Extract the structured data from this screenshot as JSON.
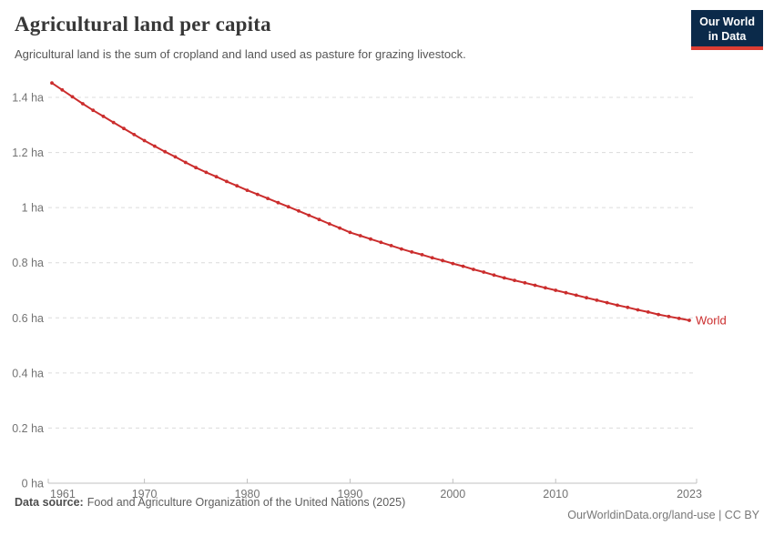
{
  "header": {
    "title": "Agricultural land per capita",
    "subtitle": "Agricultural land is the sum of cropland and land used as pasture for grazing livestock.",
    "logo": {
      "line1": "Our World",
      "line2": "in Data",
      "bg_color": "#0b2a4a",
      "accent_color": "#dc3d33",
      "text_color": "#ffffff"
    }
  },
  "footer": {
    "source_label": "Data source:",
    "source_text": "Food and Agriculture Organization of the United Nations (2025)",
    "citation_link": "OurWorldinData.org/land-use",
    "separator": " | ",
    "license": "CC BY"
  },
  "colors": {
    "line": "#cb2d2d",
    "gridline": "#dcdcdc",
    "axis_line": "#c0c0c0",
    "axis_text": "#737373"
  },
  "chart_data": {
    "type": "line",
    "title": "Agricultural land per capita",
    "unit": "hectares per person",
    "grid": "horizontal-dashed",
    "legend_position": "end-of-line",
    "xlim": [
      1961,
      2023
    ],
    "ylim": [
      0,
      1.45
    ],
    "x_ticks": [
      1961,
      1970,
      1980,
      1990,
      2000,
      2010,
      2023
    ],
    "y_ticks": [
      0,
      0.2,
      0.4,
      0.6,
      0.8,
      1.0,
      1.2,
      1.4
    ],
    "y_tick_labels": [
      "0 ha",
      "0.2 ha",
      "0.4 ha",
      "0.6 ha",
      "0.8 ha",
      "1 ha",
      "1.2 ha",
      "1.4 ha"
    ],
    "series": [
      {
        "name": "World",
        "color": "#cb2d2d",
        "years": [
          1961,
          1962,
          1963,
          1964,
          1965,
          1966,
          1967,
          1968,
          1969,
          1970,
          1971,
          1972,
          1973,
          1974,
          1975,
          1976,
          1977,
          1978,
          1979,
          1980,
          1981,
          1982,
          1983,
          1984,
          1985,
          1986,
          1987,
          1988,
          1989,
          1990,
          1991,
          1992,
          1993,
          1994,
          1995,
          1996,
          1997,
          1998,
          1999,
          2000,
          2001,
          2002,
          2003,
          2004,
          2005,
          2006,
          2007,
          2008,
          2009,
          2010,
          2011,
          2012,
          2013,
          2014,
          2015,
          2016,
          2017,
          2018,
          2019,
          2020,
          2021,
          2022,
          2023
        ],
        "values": [
          1.452,
          1.427,
          1.402,
          1.377,
          1.353,
          1.331,
          1.309,
          1.287,
          1.265,
          1.243,
          1.223,
          1.203,
          1.184,
          1.164,
          1.145,
          1.128,
          1.112,
          1.095,
          1.079,
          1.063,
          1.048,
          1.033,
          1.018,
          1.003,
          0.988,
          0.972,
          0.957,
          0.941,
          0.926,
          0.91,
          0.898,
          0.886,
          0.874,
          0.862,
          0.85,
          0.839,
          0.829,
          0.818,
          0.808,
          0.797,
          0.787,
          0.776,
          0.766,
          0.755,
          0.745,
          0.736,
          0.727,
          0.718,
          0.709,
          0.7,
          0.691,
          0.682,
          0.673,
          0.664,
          0.655,
          0.646,
          0.638,
          0.629,
          0.621,
          0.612,
          0.605,
          0.598,
          0.591
        ]
      }
    ]
  }
}
